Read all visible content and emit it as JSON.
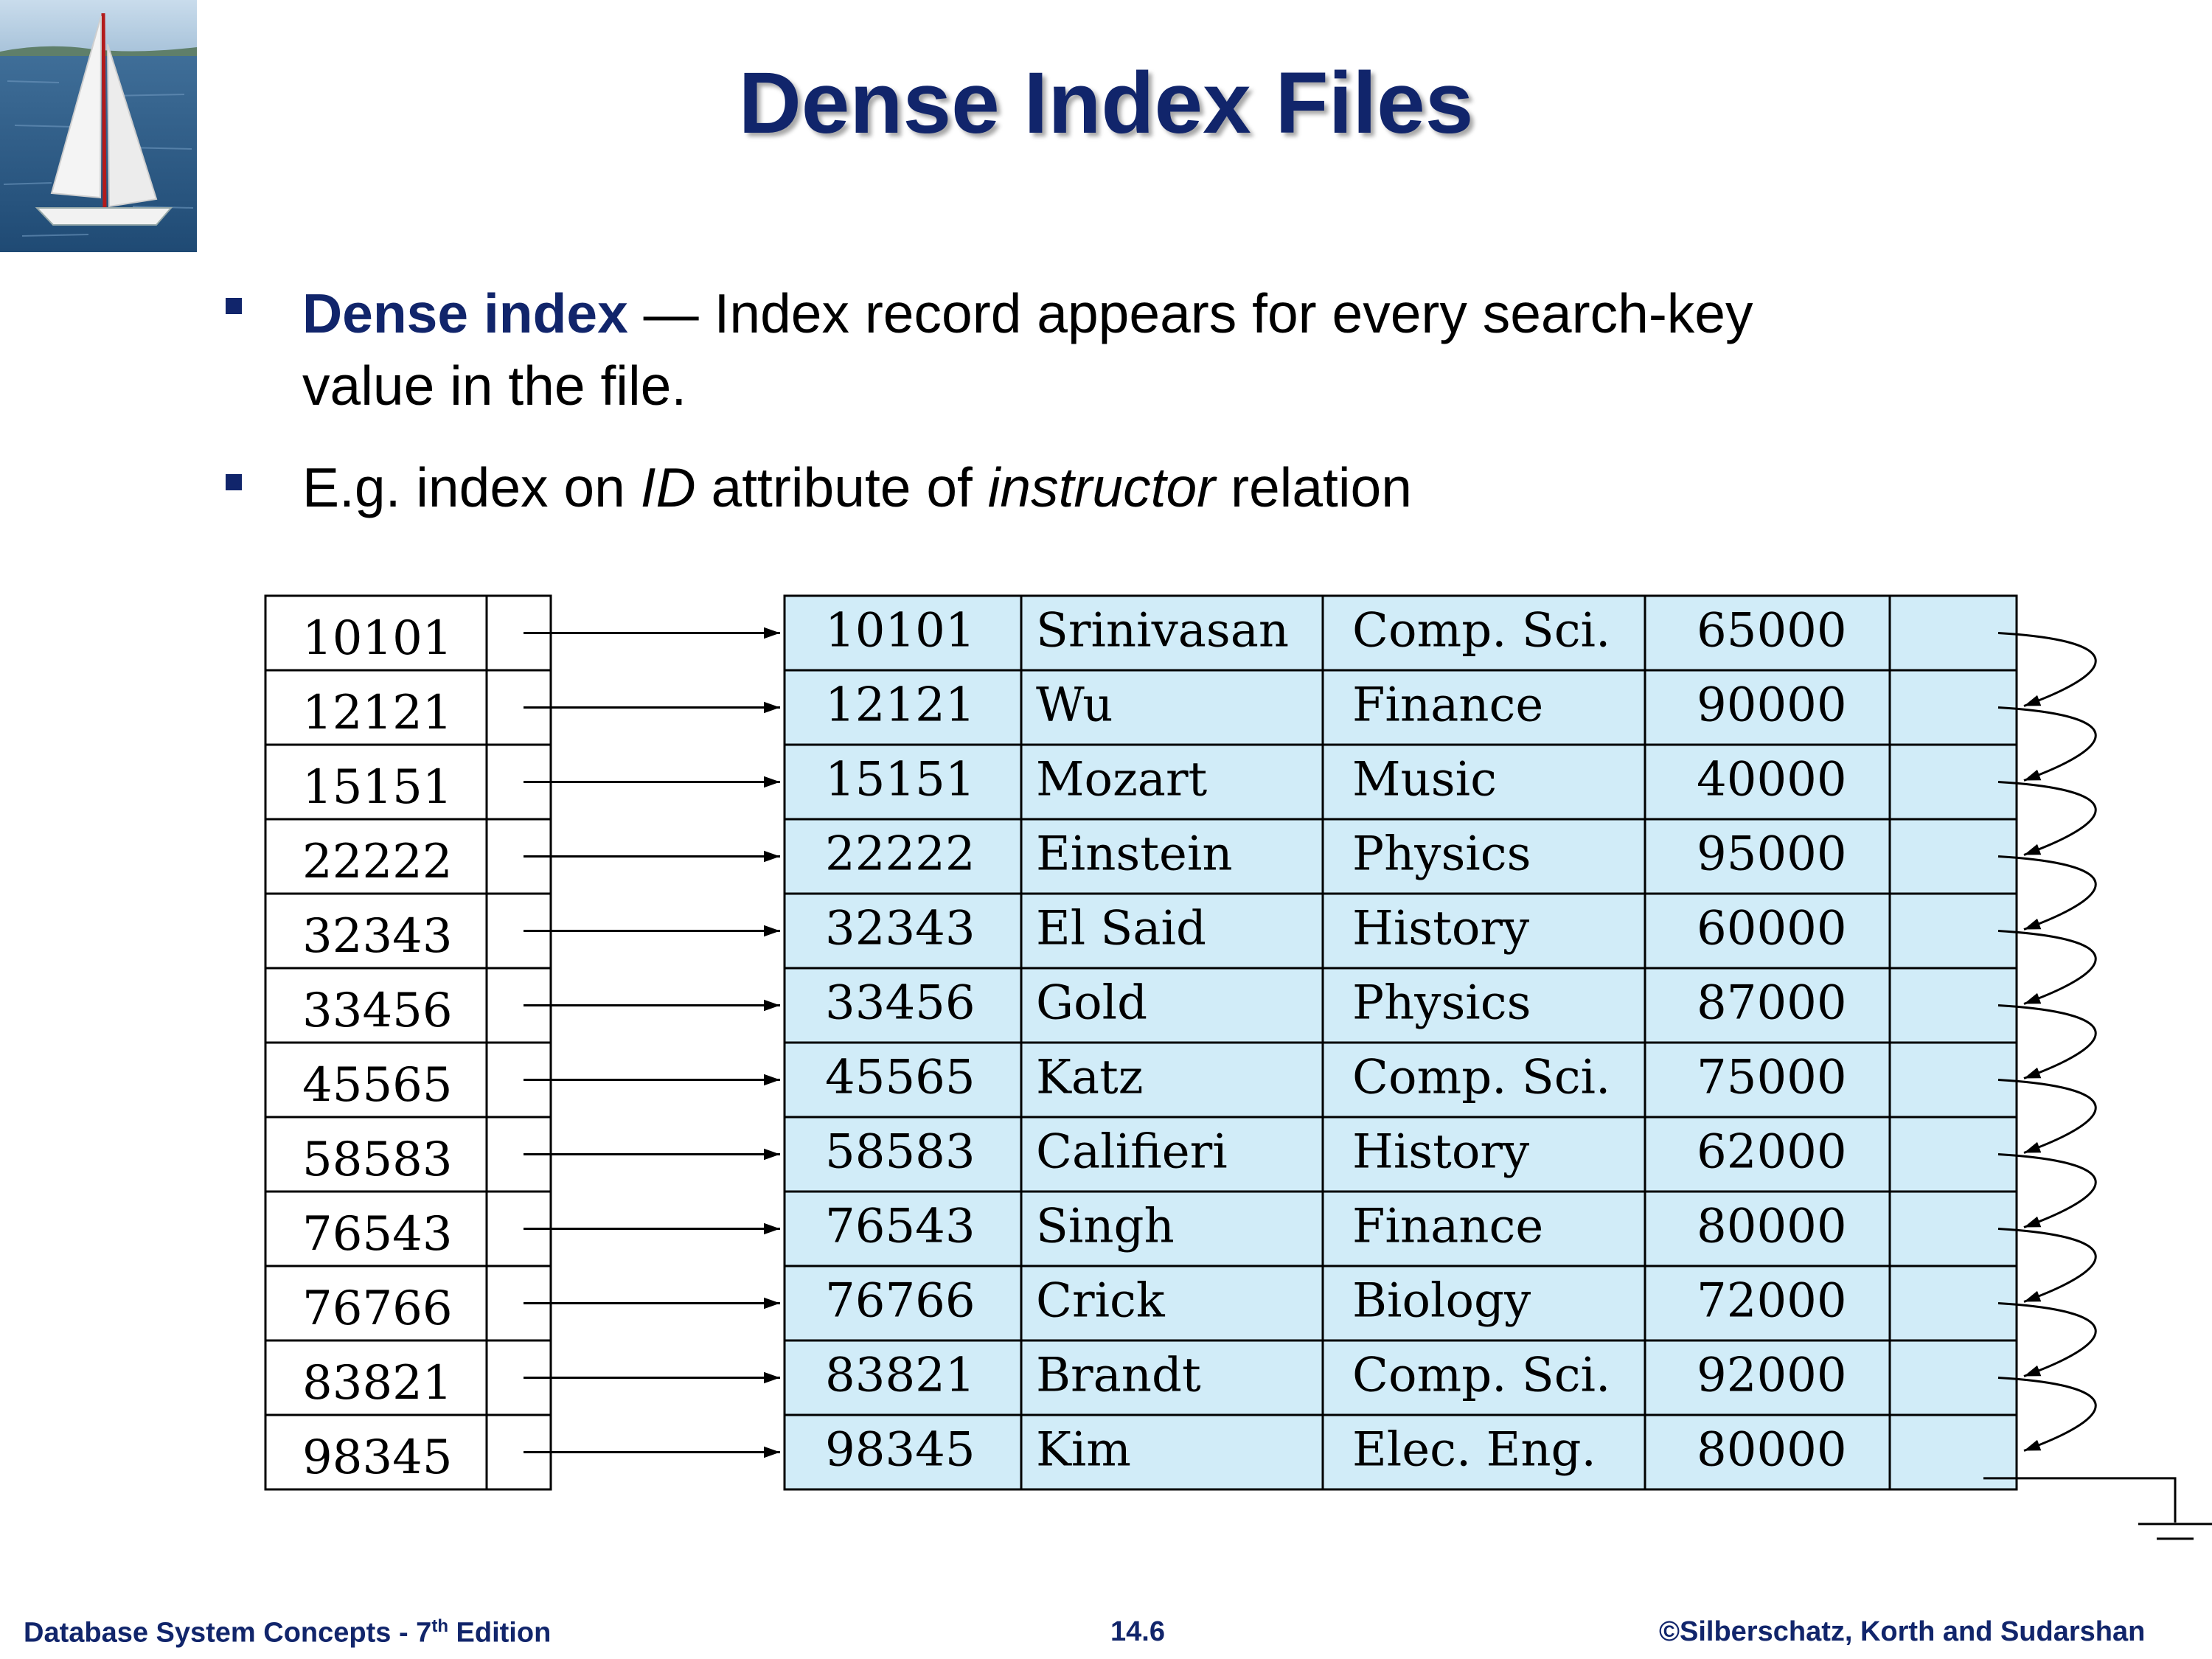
{
  "title": "Dense Index Files",
  "bullets": [
    {
      "term": "Dense index",
      "rest_line1": " — Index record appears for every search-key",
      "rest_line2": "value in the file."
    },
    {
      "part1": "E.g. index on ",
      "em1": "ID",
      "part2": " attribute of ",
      "em2": "instructor",
      "part3": " relation"
    }
  ],
  "index_keys": [
    "10101",
    "12121",
    "15151",
    "22222",
    "32343",
    "33456",
    "45565",
    "58583",
    "76543",
    "76766",
    "83821",
    "98345"
  ],
  "records": [
    [
      "10101",
      "Srinivasan",
      "Comp. Sci.",
      "65000"
    ],
    [
      "12121",
      "Wu",
      "Finance",
      "90000"
    ],
    [
      "15151",
      "Mozart",
      "Music",
      "40000"
    ],
    [
      "22222",
      "Einstein",
      "Physics",
      "95000"
    ],
    [
      "32343",
      "El Said",
      "History",
      "60000"
    ],
    [
      "33456",
      "Gold",
      "Physics",
      "87000"
    ],
    [
      "45565",
      "Katz",
      "Comp. Sci.",
      "75000"
    ],
    [
      "58583",
      "Califieri",
      "History",
      "62000"
    ],
    [
      "76543",
      "Singh",
      "Finance",
      "80000"
    ],
    [
      "76766",
      "Crick",
      "Biology",
      "72000"
    ],
    [
      "83821",
      "Brandt",
      "Comp. Sci.",
      "92000"
    ],
    [
      "98345",
      "Kim",
      "Elec. Eng.",
      "80000"
    ]
  ],
  "footer": {
    "left_main": "Database System Concepts - 7",
    "left_sup": "th",
    "left_end": " Edition",
    "center": "14.6",
    "right": "©Silberschatz, Korth and Sudarshan"
  },
  "colors": {
    "title": "#11256b",
    "record_fill": "#d1ecf8",
    "footer": "#11256b"
  },
  "icons": {
    "logo": "sailboat-logo-icon",
    "bullet": "square-bullet-icon"
  }
}
